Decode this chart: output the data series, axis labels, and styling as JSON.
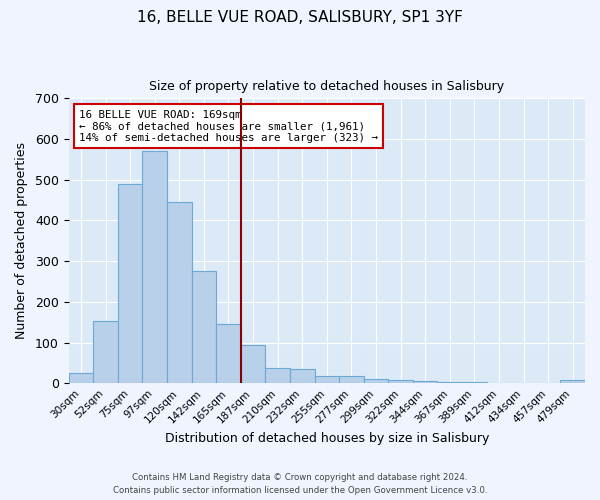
{
  "title": "16, BELLE VUE ROAD, SALISBURY, SP1 3YF",
  "subtitle": "Size of property relative to detached houses in Salisbury",
  "xlabel": "Distribution of detached houses by size in Salisbury",
  "ylabel": "Number of detached properties",
  "bar_labels": [
    "30sqm",
    "52sqm",
    "75sqm",
    "97sqm",
    "120sqm",
    "142sqm",
    "165sqm",
    "187sqm",
    "210sqm",
    "232sqm",
    "255sqm",
    "277sqm",
    "299sqm",
    "322sqm",
    "344sqm",
    "367sqm",
    "389sqm",
    "412sqm",
    "434sqm",
    "457sqm",
    "479sqm"
  ],
  "bar_heights": [
    25,
    152,
    490,
    570,
    445,
    277,
    145,
    95,
    38,
    36,
    17,
    18,
    11,
    8,
    5,
    4,
    4,
    0,
    0,
    0,
    7
  ],
  "bar_color": "#b8d0ea",
  "bar_edge_color": "#6aaad4",
  "bg_color": "#dce9f7",
  "grid_color": "#ffffff",
  "vline_color": "#8b0000",
  "annotation_text": "16 BELLE VUE ROAD: 169sqm\n← 86% of detached houses are smaller (1,961)\n14% of semi-detached houses are larger (323) →",
  "annotation_box_color": "#ffffff",
  "annotation_box_edge": "#cc0000",
  "footer1": "Contains HM Land Registry data © Crown copyright and database right 2024.",
  "footer2": "Contains public sector information licensed under the Open Government Licence v3.0.",
  "fig_bg": "#f0f4ff",
  "ylim": [
    0,
    700
  ],
  "yticks": [
    0,
    100,
    200,
    300,
    400,
    500,
    600,
    700
  ],
  "vline_x_index": 6
}
